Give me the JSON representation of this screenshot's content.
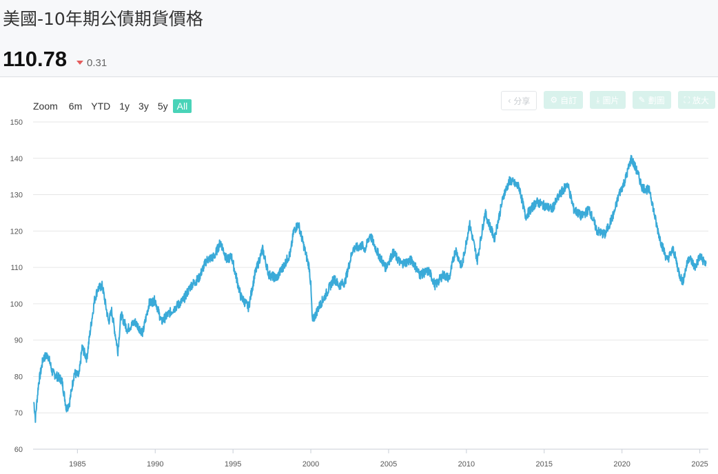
{
  "header": {
    "title": "美國-10年期公債期貨價格",
    "price": "110.78",
    "change": "0.31",
    "change_direction": "down",
    "change_color": "#e35c5c"
  },
  "range_selector": {
    "label": "Zoom",
    "buttons": [
      "6m",
      "YTD",
      "1y",
      "3y",
      "5y",
      "All"
    ],
    "active": "All",
    "active_color": "#49d3b8"
  },
  "toolbar": [
    {
      "label": "分享",
      "icon": "share-icon"
    },
    {
      "label": "自訂",
      "icon": "gear-icon"
    },
    {
      "label": "圖片",
      "icon": "download-icon"
    },
    {
      "label": "劃圖",
      "icon": "pencil-icon"
    },
    {
      "label": "放大",
      "icon": "expand-icon"
    }
  ],
  "chart_data": {
    "type": "line",
    "title": "",
    "xlabel": "",
    "ylabel": "",
    "ylim": [
      60,
      150
    ],
    "yticks": [
      60,
      70,
      80,
      90,
      100,
      110,
      120,
      130,
      140,
      150
    ],
    "xlim": [
      1982.15,
      2025.55
    ],
    "xticks": [
      "1985",
      "1990",
      "1995",
      "2000",
      "2005",
      "2010",
      "2015",
      "2020",
      "2025"
    ],
    "grid": true,
    "legend": "none",
    "line_color": "#3aaad8",
    "series": [
      {
        "x": [
          1982.2,
          1982.3,
          1982.5,
          1982.8,
          1983.1,
          1983.4,
          1983.7,
          1984.0,
          1984.3,
          1984.5,
          1984.8,
          1985.1,
          1985.3,
          1985.6,
          1985.9,
          1986.1,
          1986.3,
          1986.6,
          1987.0,
          1987.2,
          1987.6,
          1987.8,
          1988.2,
          1988.7,
          1989.2,
          1989.6,
          1990.0,
          1990.4,
          1990.8,
          1991.3,
          1991.8,
          1992.3,
          1992.8,
          1993.3,
          1993.8,
          1994.2,
          1994.6,
          1994.9,
          1995.5,
          1996.0,
          1996.4,
          1996.9,
          1997.3,
          1997.8,
          1998.2,
          1998.7,
          1998.9,
          1999.2,
          1999.6,
          1999.9,
          2000.0,
          2000.1,
          2000.5,
          2000.9,
          2001.5,
          2001.8,
          2002.2,
          2002.7,
          2003.3,
          2003.5,
          2003.8,
          2004.3,
          2004.8,
          2005.3,
          2005.8,
          2006.5,
          2007.0,
          2007.6,
          2008.0,
          2008.5,
          2008.9,
          2009.3,
          2009.7,
          2010.2,
          2010.7,
          2011.2,
          2011.8,
          2012.4,
          2012.8,
          2013.4,
          2013.8,
          2014.5,
          2015.0,
          2015.5,
          2016.0,
          2016.5,
          2016.9,
          2017.4,
          2017.9,
          2018.4,
          2018.9,
          2019.5,
          2019.8,
          2020.2,
          2020.6,
          2021.0,
          2021.3,
          2021.8,
          2022.2,
          2022.5,
          2022.9,
          2023.3,
          2023.7,
          2023.9,
          2024.3,
          2024.7,
          2025.0,
          2025.4
        ],
        "y": [
          73,
          68.5,
          78,
          85,
          86,
          81,
          80,
          79,
          71,
          73,
          81,
          80,
          88,
          85,
          95,
          101,
          104,
          105,
          95,
          98,
          87,
          97,
          93,
          95,
          92,
          100,
          101,
          95,
          97,
          99,
          101,
          105,
          107,
          112,
          113,
          117,
          112,
          113,
          102,
          99,
          108,
          115,
          108,
          107,
          110,
          114,
          120,
          122,
          115,
          110,
          105,
          95,
          99,
          102,
          107,
          105,
          106,
          115,
          116,
          115,
          119,
          114,
          110,
          114,
          111,
          112,
          108,
          109,
          105,
          108,
          107,
          115,
          110,
          122,
          112,
          125,
          118,
          130,
          134,
          132,
          124,
          128,
          127,
          126,
          130,
          133,
          126,
          124,
          126,
          120,
          119,
          125,
          130,
          134,
          140,
          136,
          132,
          131,
          122,
          117,
          112,
          115,
          108,
          106,
          113,
          110,
          113,
          111
        ]
      }
    ]
  }
}
